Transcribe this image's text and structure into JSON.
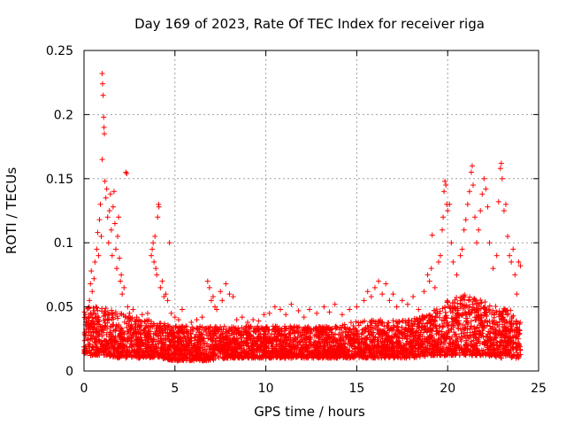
{
  "chart_data": {
    "type": "scatter",
    "title": "Day 169 of 2023, Rate Of TEC Index for receiver riga",
    "xlabel": "GPS time / hours",
    "ylabel": "ROTI / TECUs",
    "xlim": [
      0,
      25
    ],
    "ylim": [
      0,
      0.25
    ],
    "x_ticks": [
      0,
      5,
      10,
      15,
      20,
      25
    ],
    "x_tick_labels": [
      "0",
      "5",
      "10",
      "15",
      "20",
      "25"
    ],
    "y_ticks": [
      0,
      0.05,
      0.1,
      0.15,
      0.2,
      0.25
    ],
    "y_tick_labels": [
      "0",
      "0.05",
      "0.1",
      "0.15",
      "0.2",
      "0.25"
    ],
    "grid": true,
    "marker": "plus",
    "color": "#ff0000",
    "series": [
      {
        "points": [
          [
            0.1,
            0.028
          ],
          [
            0.2,
            0.035
          ],
          [
            0.3,
            0.055
          ],
          [
            0.35,
            0.068
          ],
          [
            0.4,
            0.078
          ],
          [
            0.45,
            0.062
          ],
          [
            0.5,
            0.045
          ],
          [
            0.55,
            0.072
          ],
          [
            0.6,
            0.085
          ],
          [
            0.65,
            0.05
          ],
          [
            0.7,
            0.095
          ],
          [
            0.75,
            0.108
          ],
          [
            0.8,
            0.09
          ],
          [
            0.85,
            0.118
          ],
          [
            0.9,
            0.13
          ],
          [
            0.95,
            0.105
          ],
          [
            1.0,
            0.165
          ],
          [
            1.0,
            0.232
          ],
          [
            1.02,
            0.224
          ],
          [
            1.05,
            0.215
          ],
          [
            1.08,
            0.198
          ],
          [
            1.1,
            0.19
          ],
          [
            1.12,
            0.185
          ],
          [
            1.15,
            0.148
          ],
          [
            1.2,
            0.135
          ],
          [
            1.25,
            0.142
          ],
          [
            1.3,
            0.12
          ],
          [
            1.35,
            0.1
          ],
          [
            1.4,
            0.125
          ],
          [
            1.45,
            0.138
          ],
          [
            1.5,
            0.11
          ],
          [
            1.55,
            0.09
          ],
          [
            1.6,
            0.128
          ],
          [
            1.65,
            0.14
          ],
          [
            1.7,
            0.115
          ],
          [
            1.75,
            0.095
          ],
          [
            1.8,
            0.08
          ],
          [
            1.85,
            0.105
          ],
          [
            1.9,
            0.12
          ],
          [
            1.95,
            0.088
          ],
          [
            2.0,
            0.07
          ],
          [
            2.05,
            0.075
          ],
          [
            2.1,
            0.06
          ],
          [
            2.2,
            0.065
          ],
          [
            2.3,
            0.155
          ],
          [
            2.35,
            0.154
          ],
          [
            2.4,
            0.05
          ],
          [
            2.5,
            0.045
          ],
          [
            2.7,
            0.048
          ],
          [
            2.9,
            0.042
          ],
          [
            3.2,
            0.044
          ],
          [
            3.5,
            0.045
          ],
          [
            3.7,
            0.09
          ],
          [
            3.75,
            0.095
          ],
          [
            3.8,
            0.1
          ],
          [
            3.85,
            0.085
          ],
          [
            3.9,
            0.105
          ],
          [
            3.95,
            0.08
          ],
          [
            4.0,
            0.075
          ],
          [
            4.05,
            0.12
          ],
          [
            4.1,
            0.13
          ],
          [
            4.12,
            0.128
          ],
          [
            4.2,
            0.065
          ],
          [
            4.3,
            0.07
          ],
          [
            4.4,
            0.058
          ],
          [
            4.5,
            0.06
          ],
          [
            4.6,
            0.055
          ],
          [
            4.7,
            0.1
          ],
          [
            4.8,
            0.045
          ],
          [
            5.0,
            0.042
          ],
          [
            5.2,
            0.04
          ],
          [
            5.4,
            0.048
          ],
          [
            5.6,
            0.035
          ],
          [
            5.9,
            0.038
          ],
          [
            6.2,
            0.04
          ],
          [
            6.5,
            0.042
          ],
          [
            6.8,
            0.07
          ],
          [
            6.9,
            0.065
          ],
          [
            7.0,
            0.055
          ],
          [
            7.1,
            0.058
          ],
          [
            7.2,
            0.05
          ],
          [
            7.3,
            0.048
          ],
          [
            7.5,
            0.062
          ],
          [
            7.6,
            0.055
          ],
          [
            7.8,
            0.068
          ],
          [
            8.0,
            0.06
          ],
          [
            8.2,
            0.058
          ],
          [
            8.4,
            0.04
          ],
          [
            8.7,
            0.042
          ],
          [
            9.0,
            0.038
          ],
          [
            9.3,
            0.04
          ],
          [
            9.6,
            0.039
          ],
          [
            9.9,
            0.044
          ],
          [
            10.2,
            0.045
          ],
          [
            10.5,
            0.05
          ],
          [
            10.8,
            0.048
          ],
          [
            11.1,
            0.044
          ],
          [
            11.4,
            0.052
          ],
          [
            11.8,
            0.047
          ],
          [
            12.1,
            0.042
          ],
          [
            12.4,
            0.048
          ],
          [
            12.8,
            0.045
          ],
          [
            13.2,
            0.05
          ],
          [
            13.5,
            0.046
          ],
          [
            13.8,
            0.052
          ],
          [
            14.2,
            0.044
          ],
          [
            14.6,
            0.048
          ],
          [
            15.0,
            0.05
          ],
          [
            15.4,
            0.055
          ],
          [
            15.6,
            0.062
          ],
          [
            15.8,
            0.058
          ],
          [
            16.0,
            0.065
          ],
          [
            16.2,
            0.07
          ],
          [
            16.4,
            0.06
          ],
          [
            16.6,
            0.068
          ],
          [
            16.8,
            0.055
          ],
          [
            17.0,
            0.06
          ],
          [
            17.2,
            0.05
          ],
          [
            17.5,
            0.055
          ],
          [
            17.8,
            0.052
          ],
          [
            18.1,
            0.058
          ],
          [
            18.4,
            0.048
          ],
          [
            18.7,
            0.062
          ],
          [
            18.9,
            0.075
          ],
          [
            19.0,
            0.07
          ],
          [
            19.1,
            0.08
          ],
          [
            19.15,
            0.106
          ],
          [
            19.3,
            0.065
          ],
          [
            19.5,
            0.085
          ],
          [
            19.6,
            0.09
          ],
          [
            19.7,
            0.11
          ],
          [
            19.75,
            0.12
          ],
          [
            19.8,
            0.14
          ],
          [
            19.85,
            0.148
          ],
          [
            19.9,
            0.145
          ],
          [
            19.95,
            0.13
          ],
          [
            20.0,
            0.125
          ],
          [
            20.1,
            0.13
          ],
          [
            20.2,
            0.1
          ],
          [
            20.3,
            0.085
          ],
          [
            20.5,
            0.075
          ],
          [
            20.7,
            0.09
          ],
          [
            20.8,
            0.095
          ],
          [
            20.9,
            0.11
          ],
          [
            21.0,
            0.118
          ],
          [
            21.1,
            0.13
          ],
          [
            21.2,
            0.14
          ],
          [
            21.3,
            0.155
          ],
          [
            21.35,
            0.16
          ],
          [
            21.4,
            0.145
          ],
          [
            21.5,
            0.12
          ],
          [
            21.6,
            0.1
          ],
          [
            21.7,
            0.11
          ],
          [
            21.8,
            0.125
          ],
          [
            21.9,
            0.138
          ],
          [
            22.0,
            0.15
          ],
          [
            22.1,
            0.142
          ],
          [
            22.2,
            0.128
          ],
          [
            22.3,
            0.1
          ],
          [
            22.5,
            0.08
          ],
          [
            22.7,
            0.09
          ],
          [
            22.8,
            0.132
          ],
          [
            22.9,
            0.158
          ],
          [
            22.95,
            0.162
          ],
          [
            23.0,
            0.15
          ],
          [
            23.1,
            0.125
          ],
          [
            23.2,
            0.13
          ],
          [
            23.3,
            0.105
          ],
          [
            23.4,
            0.09
          ],
          [
            23.5,
            0.085
          ],
          [
            23.6,
            0.095
          ],
          [
            23.7,
            0.075
          ],
          [
            23.8,
            0.06
          ],
          [
            23.9,
            0.085
          ],
          [
            24.0,
            0.082
          ]
        ],
        "band": [
          [
            0.0,
            0.012,
            0.05
          ],
          [
            1.0,
            0.012,
            0.05
          ],
          [
            2.0,
            0.01,
            0.045
          ],
          [
            3.0,
            0.01,
            0.04
          ],
          [
            4.0,
            0.01,
            0.04
          ],
          [
            5.0,
            0.008,
            0.035
          ],
          [
            6.0,
            0.008,
            0.035
          ],
          [
            7.0,
            0.008,
            0.035
          ],
          [
            8.0,
            0.01,
            0.035
          ],
          [
            9.0,
            0.01,
            0.035
          ],
          [
            10.0,
            0.01,
            0.035
          ],
          [
            11.0,
            0.01,
            0.035
          ],
          [
            12.0,
            0.01,
            0.035
          ],
          [
            13.0,
            0.01,
            0.035
          ],
          [
            14.0,
            0.01,
            0.035
          ],
          [
            15.0,
            0.01,
            0.04
          ],
          [
            16.0,
            0.01,
            0.04
          ],
          [
            17.0,
            0.01,
            0.04
          ],
          [
            18.0,
            0.01,
            0.04
          ],
          [
            19.0,
            0.012,
            0.045
          ],
          [
            20.0,
            0.012,
            0.055
          ],
          [
            21.0,
            0.012,
            0.06
          ],
          [
            22.0,
            0.012,
            0.055
          ],
          [
            23.0,
            0.01,
            0.05
          ],
          [
            24.0,
            0.01,
            0.045
          ]
        ]
      }
    ]
  }
}
